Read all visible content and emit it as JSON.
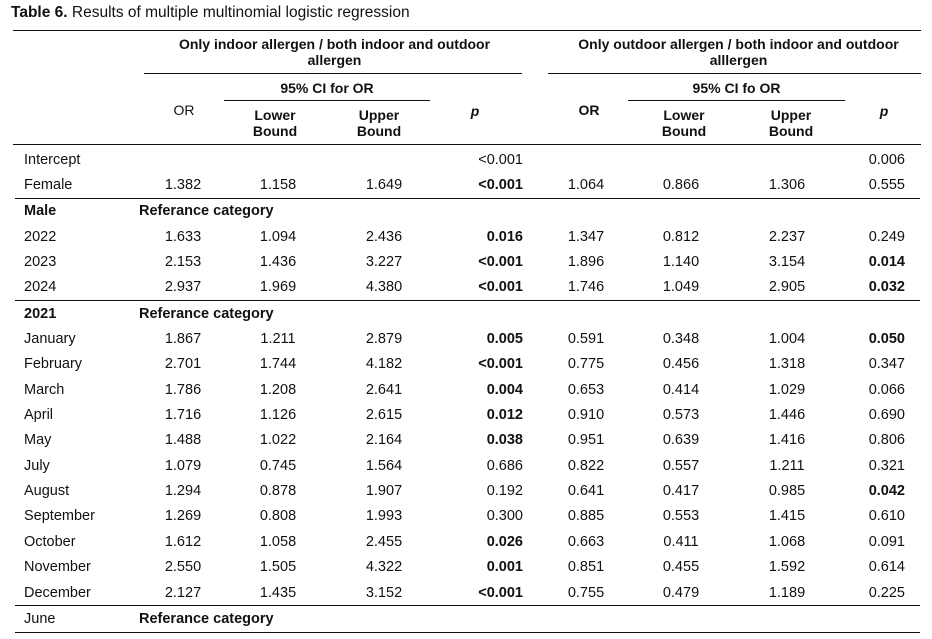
{
  "title": {
    "bold": "Table 6.",
    "rest": " Results of multiple multinomial logistic regression"
  },
  "groups": [
    {
      "heading": "Only indoor allergen / both indoor and outdoor allergen",
      "ci_heading": "95% CI for OR",
      "or_label": "OR",
      "lower_label": "Lower Bound",
      "upper_label": "Upper Bound",
      "p_label": "p"
    },
    {
      "heading": "Only outdoor allergen / both indoor and outdoor alllergen",
      "ci_heading": "95% CI fo OR",
      "or_label": "OR",
      "lower_label": "Lower Bound",
      "upper_label": "Upper Bound",
      "p_label": "p"
    }
  ],
  "rows": [
    {
      "label": "Intercept",
      "or1": "",
      "lo1": "",
      "up1": "",
      "p1": "<0.001",
      "p1_bold": false,
      "or2": "",
      "lo2": "",
      "up2": "",
      "p2": "0.006",
      "p2_bold": false
    },
    {
      "label": "Female",
      "or1": "1.382",
      "lo1": "1.158",
      "up1": "1.649",
      "p1": "<0.001",
      "p1_bold": true,
      "or2": "1.064",
      "lo2": "0.866",
      "up2": "1.306",
      "p2": "0.555",
      "p2_bold": false
    },
    {
      "label": "Male",
      "section": true,
      "ref": "Referance category",
      "topline": true
    },
    {
      "label": "2022",
      "or1": "1.633",
      "lo1": "1.094",
      "up1": "2.436",
      "p1": "0.016",
      "p1_bold": true,
      "or2": "1.347",
      "lo2": "0.812",
      "up2": "2.237",
      "p2": "0.249",
      "p2_bold": false
    },
    {
      "label": "2023",
      "or1": "2.153",
      "lo1": "1.436",
      "up1": "3.227",
      "p1": "<0.001",
      "p1_bold": true,
      "or2": "1.896",
      "lo2": "1.140",
      "up2": "3.154",
      "p2": "0.014",
      "p2_bold": true
    },
    {
      "label": "2024",
      "or1": "2.937",
      "lo1": "1.969",
      "up1": "4.380",
      "p1": "<0.001",
      "p1_bold": true,
      "or2": "1.746",
      "lo2": "1.049",
      "up2": "2.905",
      "p2": "0.032",
      "p2_bold": true
    },
    {
      "label": "2021",
      "section": true,
      "ref": "Referance category",
      "topline": true
    },
    {
      "label": "January",
      "or1": "1.867",
      "lo1": "1.211",
      "up1": "2.879",
      "p1": "0.005",
      "p1_bold": true,
      "or2": "0.591",
      "lo2": "0.348",
      "up2": "1.004",
      "p2": "0.050",
      "p2_bold": true
    },
    {
      "label": "February",
      "or1": "2.701",
      "lo1": "1.744",
      "up1": "4.182",
      "p1": "<0.001",
      "p1_bold": true,
      "or2": "0.775",
      "lo2": "0.456",
      "up2": "1.318",
      "p2": "0.347",
      "p2_bold": false
    },
    {
      "label": "March",
      "or1": "1.786",
      "lo1": "1.208",
      "up1": "2.641",
      "p1": "0.004",
      "p1_bold": true,
      "or2": "0.653",
      "lo2": "0.414",
      "up2": "1.029",
      "p2": "0.066",
      "p2_bold": false
    },
    {
      "label": "April",
      "or1": "1.716",
      "lo1": "1.126",
      "up1": "2.615",
      "p1": "0.012",
      "p1_bold": true,
      "or2": "0.910",
      "lo2": "0.573",
      "up2": "1.446",
      "p2": "0.690",
      "p2_bold": false
    },
    {
      "label": "May",
      "or1": "1.488",
      "lo1": "1.022",
      "up1": "2.164",
      "p1": "0.038",
      "p1_bold": true,
      "or2": "0.951",
      "lo2": "0.639",
      "up2": "1.416",
      "p2": "0.806",
      "p2_bold": false
    },
    {
      "label": "July",
      "or1": "1.079",
      "lo1": "0.745",
      "up1": "1.564",
      "p1": "0.686",
      "p1_bold": false,
      "or2": "0.822",
      "lo2": "0.557",
      "up2": "1.211",
      "p2": "0.321",
      "p2_bold": false
    },
    {
      "label": "August",
      "or1": "1.294",
      "lo1": "0.878",
      "up1": "1.907",
      "p1": "0.192",
      "p1_bold": false,
      "or2": "0.641",
      "lo2": "0.417",
      "up2": "0.985",
      "p2": "0.042",
      "p2_bold": true
    },
    {
      "label": "September",
      "or1": "1.269",
      "lo1": "0.808",
      "up1": "1.993",
      "p1": "0.300",
      "p1_bold": false,
      "or2": "0.885",
      "lo2": "0.553",
      "up2": "1.415",
      "p2": "0.610",
      "p2_bold": false
    },
    {
      "label": "October",
      "or1": "1.612",
      "lo1": "1.058",
      "up1": "2.455",
      "p1": "0.026",
      "p1_bold": true,
      "or2": "0.663",
      "lo2": "0.411",
      "up2": "1.068",
      "p2": "0.091",
      "p2_bold": false
    },
    {
      "label": "November",
      "or1": "2.550",
      "lo1": "1.505",
      "up1": "4.322",
      "p1": "0.001",
      "p1_bold": true,
      "or2": "0.851",
      "lo2": "0.455",
      "up2": "1.592",
      "p2": "0.614",
      "p2_bold": false
    },
    {
      "label": "December",
      "or1": "2.127",
      "lo1": "1.435",
      "up1": "3.152",
      "p1": "<0.001",
      "p1_bold": true,
      "or2": "0.755",
      "lo2": "0.479",
      "up2": "1.189",
      "p2": "0.225",
      "p2_bold": false
    },
    {
      "label": "June",
      "plain_section": true,
      "ref": "Referance category",
      "topline": true,
      "bottomline": true
    }
  ]
}
